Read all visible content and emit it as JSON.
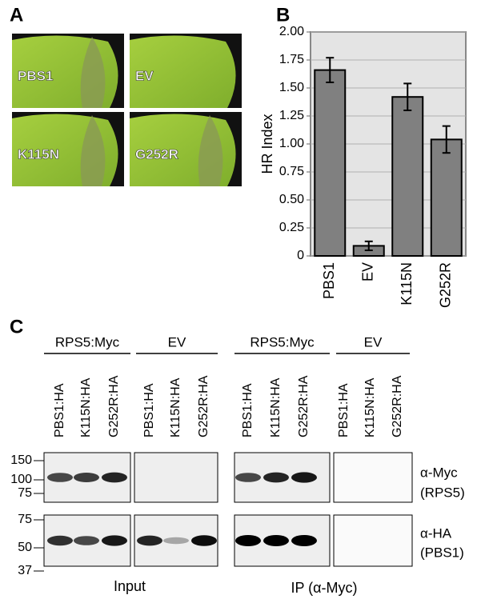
{
  "panel_a": {
    "letter": "A",
    "leaves": [
      "PBS1",
      "EV",
      "K115N",
      "G252R"
    ]
  },
  "chart_data": {
    "type": "bar",
    "letter": "B",
    "y_label": "HR Index",
    "categories": [
      "PBS1",
      "EV",
      "K115N",
      "G252R"
    ],
    "values": [
      1.66,
      0.09,
      1.42,
      1.04
    ],
    "errors": [
      0.11,
      0.04,
      0.12,
      0.12
    ],
    "color": "#808080",
    "ylim": [
      0,
      2
    ],
    "yticks": [
      0,
      0.25,
      {
        "value": 0.5,
        "label": "0.50"
      },
      0.75,
      {
        "value": 1,
        "label": "1.00"
      },
      1.25,
      {
        "value": 1.5,
        "label": "1.50"
      },
      1.75,
      {
        "value": 2,
        "label": "2.00"
      }
    ],
    "grid": true
  },
  "panel_c": {
    "letter": "C",
    "groups": [
      {
        "label": "RPS5:Myc",
        "lanes": [
          "PBS1:HA",
          "K115N:HA",
          "G252R:HA"
        ]
      },
      {
        "label": "EV",
        "lanes": [
          "PBS1:HA",
          "K115N:HA",
          "G252R:HA"
        ]
      },
      {
        "label": "RPS5:Myc",
        "lanes": [
          "PBS1:HA",
          "K115N:HA",
          "G252R:HA"
        ]
      },
      {
        "label": "EV",
        "lanes": [
          "PBS1:HA",
          "K115N:HA",
          "G252R:HA"
        ]
      }
    ],
    "blots": [
      {
        "antibody": "α-Myc",
        "target": "(RPS5)",
        "markers": [
          "150",
          "100",
          "75"
        ]
      },
      {
        "antibody": "α-HA",
        "target": "(PBS1)",
        "markers": [
          "75",
          "50",
          "37"
        ]
      }
    ],
    "sections": [
      "Input",
      "IP (α-Myc)"
    ]
  }
}
